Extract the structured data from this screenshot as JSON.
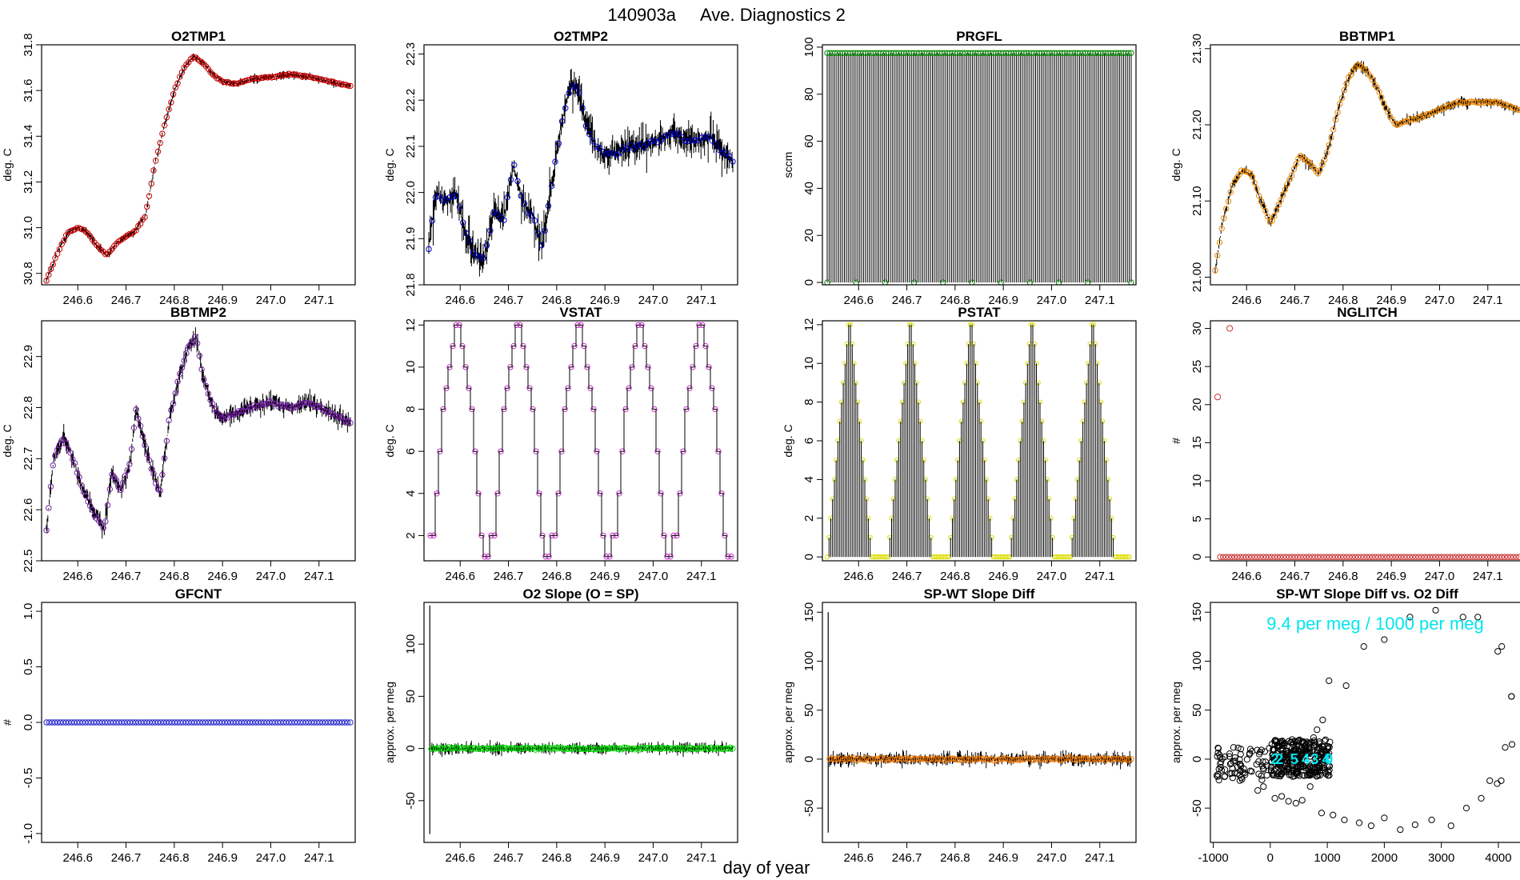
{
  "figure": {
    "title_id": "140903a",
    "title_text": "Ave. Diagnostics 2",
    "xlabel": "day of year"
  },
  "chart_data": [
    {
      "id": "o2tmp1",
      "type": "line",
      "title": "O2TMP1",
      "ylabel": "deg. C",
      "xlim": [
        246.525,
        247.175
      ],
      "ylim": [
        30.75,
        31.8
      ],
      "xticks": [
        "246.6",
        "246.7",
        "246.8",
        "246.9",
        "247.0",
        "247.1"
      ],
      "yticks": [
        "30.8",
        "31.0",
        "31.2",
        "31.4",
        "31.6",
        "31.8"
      ],
      "color": "#cc0000",
      "noise": 0.012,
      "marker_n": 140,
      "x": [
        246.535,
        246.56,
        246.58,
        246.6,
        246.62,
        246.64,
        246.66,
        246.68,
        246.7,
        246.72,
        246.74,
        246.76,
        246.78,
        246.8,
        246.82,
        246.84,
        246.86,
        246.88,
        246.9,
        246.93,
        246.96,
        247.0,
        247.04,
        247.08,
        247.12,
        247.165
      ],
      "y": [
        30.77,
        30.9,
        30.98,
        31.0,
        30.98,
        30.92,
        30.88,
        30.93,
        30.96,
        30.99,
        31.05,
        31.28,
        31.45,
        31.6,
        31.7,
        31.75,
        31.72,
        31.67,
        31.64,
        31.63,
        31.65,
        31.66,
        31.67,
        31.66,
        31.64,
        31.62
      ]
    },
    {
      "id": "o2tmp2",
      "type": "line",
      "title": "O2TMP2",
      "ylabel": "deg. C",
      "xlim": [
        246.525,
        247.175
      ],
      "ylim": [
        21.8,
        22.32
      ],
      "xticks": [
        "246.6",
        "246.7",
        "246.8",
        "246.9",
        "247.0",
        "247.1"
      ],
      "yticks": [
        "21.8",
        "21.9",
        "22.0",
        "22.1",
        "22.2",
        "22.3"
      ],
      "color": "#0000cc",
      "noise": 0.028,
      "marker_n": 90,
      "x": [
        246.535,
        246.55,
        246.57,
        246.59,
        246.61,
        246.63,
        246.65,
        246.67,
        246.69,
        246.71,
        246.73,
        246.75,
        246.77,
        246.79,
        246.81,
        246.83,
        246.845,
        246.86,
        246.88,
        246.9,
        246.93,
        246.96,
        247.0,
        247.04,
        247.08,
        247.12,
        247.15,
        247.165
      ],
      "y": [
        21.88,
        22.0,
        21.98,
        22.0,
        21.92,
        21.86,
        21.86,
        21.96,
        21.94,
        22.06,
        21.98,
        21.95,
        21.88,
        22.02,
        22.15,
        22.24,
        22.22,
        22.15,
        22.1,
        22.08,
        22.09,
        22.1,
        22.11,
        22.13,
        22.11,
        22.12,
        22.08,
        22.07
      ]
    },
    {
      "id": "prgfl",
      "type": "bar",
      "title": "PRGFL",
      "ylabel": "sccm",
      "xlim": [
        246.525,
        247.175
      ],
      "ylim": [
        -1,
        101
      ],
      "xticks": [
        "246.6",
        "246.7",
        "246.8",
        "246.9",
        "247.0",
        "247.1"
      ],
      "yticks": [
        "0",
        "20",
        "40",
        "60",
        "80",
        "100"
      ],
      "color": "#008800",
      "high": 97.5,
      "low": 0,
      "x_start": 246.535,
      "x_end": 247.165,
      "n_lines": 160,
      "low_markers_x": [
        246.535,
        246.595,
        246.655,
        246.715,
        246.775,
        246.835,
        246.895,
        246.955,
        247.015,
        247.075,
        247.165
      ]
    },
    {
      "id": "bbtmp1",
      "type": "line",
      "title": "BBTMP1",
      "ylabel": "deg. C",
      "xlim": [
        246.525,
        247.175
      ],
      "ylim": [
        20.99,
        21.305
      ],
      "xticks": [
        "246.6",
        "246.7",
        "246.8",
        "246.9",
        "247.0",
        "247.1"
      ],
      "yticks": [
        "21.00",
        "21.10",
        "21.20",
        "21.30"
      ],
      "color": "#ee8800",
      "noise": 0.005,
      "marker_n": 140,
      "x": [
        246.535,
        246.55,
        246.57,
        246.59,
        246.61,
        246.63,
        246.65,
        246.67,
        246.69,
        246.71,
        246.73,
        246.75,
        246.77,
        246.79,
        246.81,
        246.83,
        246.85,
        246.87,
        246.89,
        246.91,
        246.93,
        246.96,
        247.0,
        247.04,
        247.08,
        247.12,
        247.165
      ],
      "y": [
        21.01,
        21.07,
        21.12,
        21.14,
        21.135,
        21.1,
        21.07,
        21.1,
        21.13,
        21.16,
        21.15,
        21.135,
        21.17,
        21.22,
        21.26,
        21.28,
        21.27,
        21.25,
        21.22,
        21.2,
        21.205,
        21.21,
        21.22,
        21.23,
        21.23,
        21.23,
        21.22
      ]
    },
    {
      "id": "bbtmp2",
      "type": "line",
      "title": "BBTMP2",
      "ylabel": "deg. C",
      "xlim": [
        246.525,
        247.175
      ],
      "ylim": [
        22.5,
        22.97
      ],
      "xticks": [
        "246.6",
        "246.7",
        "246.8",
        "246.9",
        "247.0",
        "247.1"
      ],
      "yticks": [
        "22.5",
        "22.6",
        "22.7",
        "22.8",
        "22.9"
      ],
      "color": "#7722aa",
      "noise": 0.014,
      "marker_n": 140,
      "x": [
        246.535,
        246.55,
        246.57,
        246.59,
        246.61,
        246.63,
        246.655,
        246.67,
        246.69,
        246.71,
        246.72,
        246.74,
        246.77,
        246.79,
        246.81,
        246.83,
        246.845,
        246.86,
        246.88,
        246.9,
        246.93,
        246.96,
        247.0,
        247.04,
        247.08,
        247.12,
        247.165
      ],
      "y": [
        22.56,
        22.7,
        22.74,
        22.7,
        22.64,
        22.6,
        22.56,
        22.67,
        22.64,
        22.7,
        22.8,
        22.72,
        22.63,
        22.78,
        22.86,
        22.92,
        22.94,
        22.86,
        22.8,
        22.78,
        22.79,
        22.8,
        22.81,
        22.8,
        22.81,
        22.79,
        22.77
      ]
    },
    {
      "id": "vstat",
      "type": "step",
      "title": "VSTAT",
      "ylabel": "deg. C",
      "xlim": [
        246.525,
        247.175
      ],
      "ylim": [
        0.8,
        12.2
      ],
      "xticks": [
        "246.6",
        "246.7",
        "246.8",
        "246.9",
        "247.0",
        "247.1"
      ],
      "yticks": [
        "2",
        "4",
        "6",
        "8",
        "10",
        "12"
      ],
      "color": "#cc33cc",
      "x_start": 246.535,
      "x_end": 247.165,
      "sequence": [
        2,
        2,
        4,
        6,
        8,
        9,
        10,
        11,
        12,
        12,
        11,
        10,
        9,
        8,
        6,
        4,
        2,
        1,
        1
      ]
    },
    {
      "id": "pstat",
      "type": "bar",
      "title": "PSTAT",
      "ylabel": "deg. C",
      "xlim": [
        246.525,
        247.175
      ],
      "ylim": [
        -0.2,
        12.2
      ],
      "xticks": [
        "246.6",
        "246.7",
        "246.8",
        "246.9",
        "247.0",
        "247.1"
      ],
      "yticks": [
        "0",
        "2",
        "4",
        "6",
        "8",
        "10",
        "12"
      ],
      "color": "#dddd00",
      "x_start": 246.535,
      "x_end": 247.165,
      "n_cycles": 5,
      "lines_per_cycle": 34
    },
    {
      "id": "nglitch",
      "type": "scatter",
      "title": "NGLITCH",
      "ylabel": "#",
      "xlim": [
        246.525,
        247.175
      ],
      "ylim": [
        -0.5,
        31
      ],
      "xticks": [
        "246.6",
        "246.7",
        "246.8",
        "246.9",
        "247.0",
        "247.1"
      ],
      "yticks": [
        "0",
        "5",
        "10",
        "15",
        "20",
        "25",
        "30"
      ],
      "color": "#cc3333",
      "outliers": [
        {
          "x": 246.54,
          "y": 21
        },
        {
          "x": 246.565,
          "y": 30
        }
      ],
      "baseline_start": 246.545,
      "baseline_end": 247.165,
      "baseline_n": 105
    },
    {
      "id": "gfcnt",
      "type": "scatter",
      "title": "GFCNT",
      "ylabel": "#",
      "xlim": [
        246.525,
        247.175
      ],
      "ylim": [
        -1.08,
        1.08
      ],
      "xticks": [
        "246.6",
        "246.7",
        "246.8",
        "246.9",
        "247.0",
        "247.1"
      ],
      "yticks": [
        "-1.0",
        "-0.5",
        "0.0",
        "0.5",
        "1.0"
      ],
      "color": "#2222cc",
      "baseline_start": 246.535,
      "baseline_end": 247.165,
      "baseline_n": 110
    },
    {
      "id": "o2slope",
      "type": "line",
      "title": "O2 Slope (O = SP)",
      "ylabel": "approx. per meg",
      "xlim": [
        246.525,
        247.175
      ],
      "ylim": [
        -90,
        140
      ],
      "xticks": [
        "246.6",
        "246.7",
        "246.8",
        "246.9",
        "247.0",
        "247.1"
      ],
      "yticks": [
        "-50",
        "0",
        "50",
        "100"
      ],
      "color": "#00dd00",
      "noise": 4,
      "marker_n": 140,
      "spike": {
        "x": 246.537,
        "ymin": -82,
        "ymax": 137
      },
      "x": [
        246.54,
        247.165
      ],
      "y": [
        0,
        0
      ]
    },
    {
      "id": "spwt",
      "type": "line",
      "title": "SP-WT Slope Diff",
      "ylabel": "approx. per meg",
      "xlim": [
        246.525,
        247.175
      ],
      "ylim": [
        -85,
        160
      ],
      "xticks": [
        "246.6",
        "246.7",
        "246.8",
        "246.9",
        "247.0",
        "247.1"
      ],
      "yticks": [
        "-50",
        "0",
        "50",
        "100",
        "150"
      ],
      "color": "#ee7700",
      "noise": 5,
      "marker_n": 140,
      "spike": {
        "x": 246.537,
        "ymin": -75,
        "ymax": 150
      },
      "x": [
        246.54,
        247.165
      ],
      "y": [
        0,
        0
      ]
    },
    {
      "id": "spwt_vs_o2",
      "type": "scatter",
      "title": "SP-WT Slope Diff vs. O2 Diff",
      "ylabel": "approx. per meg",
      "xlim": [
        -1050,
        4450
      ],
      "ylim": [
        -85,
        160
      ],
      "xticks": [
        "-1000",
        "0",
        "1000",
        "2000",
        "3000",
        "4000"
      ],
      "xtick_values": [
        -1000,
        0,
        1000,
        2000,
        3000,
        4000
      ],
      "yticks": [
        "-50",
        "0",
        "50",
        "100",
        "150"
      ],
      "color": "#000000",
      "fit_color": "#00e5ee",
      "annotation": "9.4 per meg / 1000 per meg",
      "fit_labels": [
        "2",
        "2",
        "5",
        "4",
        "3",
        "4",
        "0"
      ],
      "fit_labels_x": [
        80,
        160,
        420,
        620,
        780,
        980,
        1030
      ],
      "cluster_left": {
        "xmin": -950,
        "xmax": 0,
        "ymin": -22,
        "ymax": 12,
        "n": 70
      },
      "cluster_dense": {
        "xmin": 0,
        "xmax": 1050,
        "ymin": -18,
        "ymax": 20,
        "n": 320
      },
      "scatter_points": [
        {
          "x": -350,
          "y": -12
        },
        {
          "x": -220,
          "y": -32
        },
        {
          "x": -120,
          "y": -28
        },
        {
          "x": 80,
          "y": -40
        },
        {
          "x": 200,
          "y": -38
        },
        {
          "x": 320,
          "y": -43
        },
        {
          "x": 450,
          "y": -45
        },
        {
          "x": 560,
          "y": -42
        },
        {
          "x": 700,
          "y": -28
        },
        {
          "x": 760,
          "y": 22
        },
        {
          "x": 820,
          "y": 30
        },
        {
          "x": 920,
          "y": 40
        },
        {
          "x": 1030,
          "y": 80
        },
        {
          "x": 1330,
          "y": 75
        },
        {
          "x": 900,
          "y": -55
        },
        {
          "x": 1100,
          "y": -57
        },
        {
          "x": 1300,
          "y": -62
        },
        {
          "x": 1560,
          "y": -65
        },
        {
          "x": 1770,
          "y": -68
        },
        {
          "x": 2000,
          "y": -60
        },
        {
          "x": 2280,
          "y": -72
        },
        {
          "x": 2540,
          "y": -67
        },
        {
          "x": 2830,
          "y": -62
        },
        {
          "x": 3170,
          "y": -68
        },
        {
          "x": 3440,
          "y": -50
        },
        {
          "x": 3700,
          "y": -40
        },
        {
          "x": 3980,
          "y": -25
        },
        {
          "x": 4050,
          "y": -22
        },
        {
          "x": 3850,
          "y": -22
        },
        {
          "x": 4120,
          "y": 12
        },
        {
          "x": 4240,
          "y": 15
        },
        {
          "x": 4230,
          "y": 64
        },
        {
          "x": 4230,
          "y": 64
        },
        {
          "x": 4060,
          "y": 115
        },
        {
          "x": 3990,
          "y": 110
        },
        {
          "x": 3640,
          "y": 145
        },
        {
          "x": 3380,
          "y": 145
        },
        {
          "x": 2900,
          "y": 152
        },
        {
          "x": 2450,
          "y": 145
        },
        {
          "x": 2000,
          "y": 122
        },
        {
          "x": 1640,
          "y": 115
        },
        {
          "x": -900,
          "y": -10
        },
        {
          "x": -800,
          "y": -18
        },
        {
          "x": -700,
          "y": -5
        },
        {
          "x": -520,
          "y": 5
        },
        {
          "x": -320,
          "y": 8
        }
      ]
    }
  ]
}
